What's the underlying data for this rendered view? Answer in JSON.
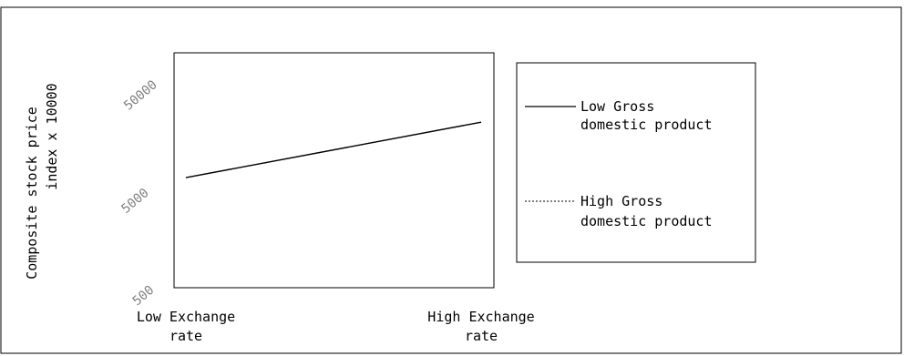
{
  "chart_data": {
    "type": "line",
    "ylabel_line1": "Composite stock price",
    "ylabel_line2": "index   x 10000",
    "y_scale": "log",
    "ylim": [
      500,
      100000
    ],
    "y_ticks": [
      "500",
      "5000",
      "50000"
    ],
    "x_ticks": [
      {
        "line1": "Low Exchange",
        "line2": "rate"
      },
      {
        "line1": "High Exchange",
        "line2": "rate"
      }
    ],
    "categories": [
      "Low Exchange rate",
      "High Exchange rate"
    ],
    "series": [
      {
        "name_line1": "Low Gross",
        "name_line2": "domestic product",
        "style": "solid",
        "x": [
          0,
          1
        ],
        "values": [
          6000,
          21000
        ]
      },
      {
        "name_line1": "High Gross",
        "name_line2": "domestic product",
        "style": "dashed",
        "x": [
          0,
          1
        ],
        "values": [
          6000,
          21000
        ]
      }
    ],
    "grid": false,
    "legend_position": "right"
  },
  "colors": {
    "line": "#000000",
    "frame": "#000000",
    "tick_text": "#808080"
  }
}
